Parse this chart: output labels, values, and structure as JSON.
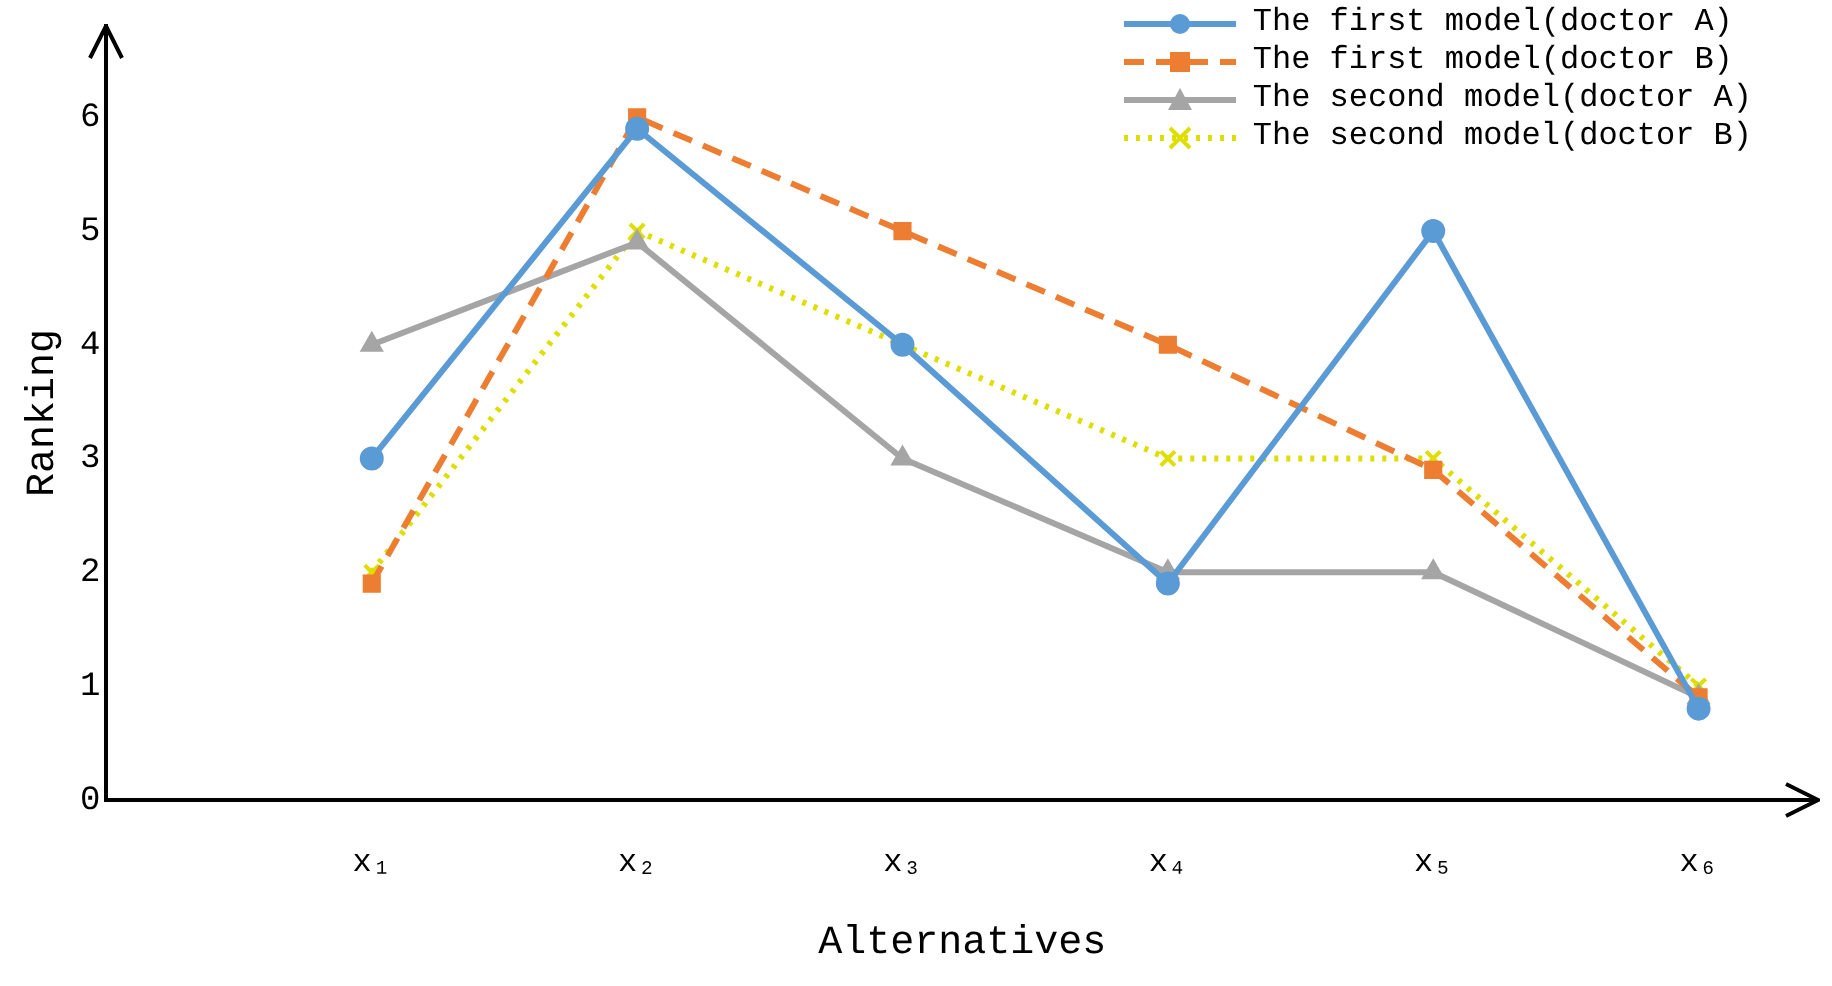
{
  "chart_data": {
    "type": "line",
    "xlabel": "Alternatives",
    "ylabel": "Ranking",
    "categories": [
      "x₁",
      "x₂",
      "x₃",
      "x₄",
      "x₅",
      "x₆"
    ],
    "series": [
      {
        "name": "The first model(doctor A)",
        "color": "#5b9bd5",
        "marker": "circle",
        "line_style": "solid",
        "values": [
          3,
          5.9,
          4,
          1.9,
          5,
          0.8
        ]
      },
      {
        "name": "The first model(doctor B)",
        "color": "#ed7d31",
        "marker": "square",
        "line_style": "dashed",
        "values": [
          1.9,
          6,
          5,
          4,
          2.9,
          0.9
        ]
      },
      {
        "name": "The second model(doctor A)",
        "color": "#a5a5a5",
        "marker": "triangle",
        "line_style": "solid",
        "values": [
          4,
          4.9,
          3,
          2,
          2,
          0.9
        ]
      },
      {
        "name": "The second model(doctor B)",
        "color": "#dede00",
        "marker": "cross",
        "line_style": "dotted",
        "values": [
          2,
          5,
          4,
          3,
          3,
          1
        ]
      }
    ],
    "ylim": [
      0,
      6.8
    ],
    "yticks": [
      0,
      1,
      2,
      3,
      4,
      5,
      6
    ],
    "grid": false,
    "legend": "top right"
  }
}
